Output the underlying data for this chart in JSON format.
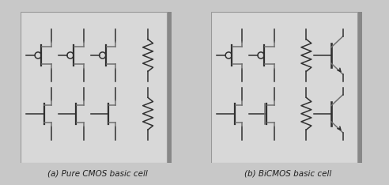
{
  "fig_width": 4.92,
  "fig_height": 2.34,
  "dpi": 100,
  "fig_bg": "#c8c8c8",
  "panel_bg": "#d8d8d8",
  "line_color": "#303030",
  "gray_color": "#707070",
  "label_a": "(a) Pure CMOS basic cell",
  "label_b": "(b) BiCMOS basic cell",
  "label_fontsize": 7.5
}
